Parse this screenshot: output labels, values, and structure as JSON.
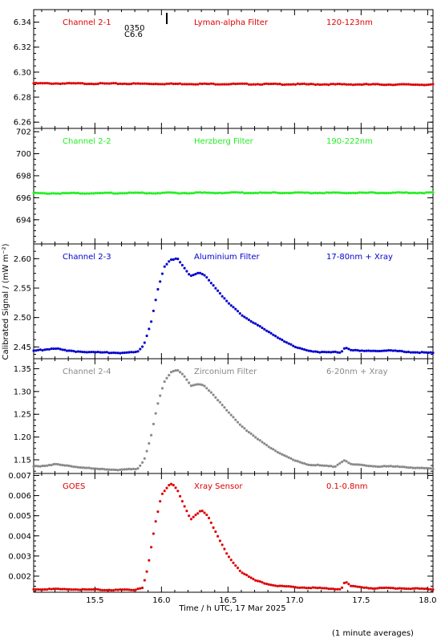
{
  "colors": {
    "red": "#dd0000",
    "green": "#22ee22",
    "blue": "#0000cc",
    "gray": "#888888",
    "axis": "#000000"
  },
  "xlabel": "Time / h UTC, 17 Mar 2025",
  "ylabel": "Calibrated Signal / (mW m⁻²)",
  "footnote": "(1 minute averages)",
  "flare_marker": {
    "time_label": "0350",
    "class_label": "C6.6",
    "x": 16.04
  },
  "x_axis": {
    "xlim": [
      15.04,
      18.04
    ],
    "ticks": [
      15.5,
      16.0,
      16.5,
      17.0,
      17.5,
      18.0
    ],
    "tick_labels": [
      "15.5",
      "16.0",
      "16.5",
      "17.0",
      "17.5",
      "18.0"
    ]
  },
  "chart_data": [
    {
      "type": "scatter",
      "channel": "Channel 2-1",
      "filter": "Lyman-alpha Filter",
      "band": "120-123nm",
      "color": "red",
      "ylim": [
        6.255,
        6.35
      ],
      "yticks": [
        6.26,
        6.28,
        6.3,
        6.32,
        6.34
      ],
      "ytick_labels": [
        "6.26",
        "6.28",
        "6.30",
        "6.32",
        "6.34"
      ],
      "keypoints": [
        [
          15.04,
          6.291
        ],
        [
          16.5,
          6.2905
        ],
        [
          18.04,
          6.29
        ]
      ]
    },
    {
      "type": "scatter",
      "channel": "Channel 2-2",
      "filter": "Herzberg Filter",
      "band": "190-222nm",
      "color": "green",
      "ylim": [
        691.8,
        702.3
      ],
      "yticks": [
        694,
        696,
        698,
        700,
        702
      ],
      "ytick_labels": [
        "694",
        "696",
        "698",
        "700",
        "702"
      ],
      "keypoints": [
        [
          15.04,
          696.4
        ],
        [
          16.5,
          696.45
        ],
        [
          18.04,
          696.45
        ]
      ]
    },
    {
      "type": "scatter",
      "channel": "Channel 2-3",
      "filter": "Aluminium Filter",
      "band": "17-80nm + Xray",
      "color": "blue",
      "ylim": [
        2.43,
        2.625
      ],
      "yticks": [
        2.45,
        2.5,
        2.55,
        2.6
      ],
      "ytick_labels": [
        "2.45",
        "2.50",
        "2.55",
        "2.60"
      ],
      "keypoints": [
        [
          15.04,
          2.443
        ],
        [
          15.2,
          2.448
        ],
        [
          15.3,
          2.443
        ],
        [
          15.5,
          2.441
        ],
        [
          15.7,
          2.44
        ],
        [
          15.82,
          2.441
        ],
        [
          15.87,
          2.455
        ],
        [
          15.92,
          2.49
        ],
        [
          15.97,
          2.545
        ],
        [
          16.02,
          2.585
        ],
        [
          16.07,
          2.598
        ],
        [
          16.12,
          2.601
        ],
        [
          16.17,
          2.585
        ],
        [
          16.22,
          2.57
        ],
        [
          16.28,
          2.576
        ],
        [
          16.33,
          2.571
        ],
        [
          16.4,
          2.552
        ],
        [
          16.5,
          2.525
        ],
        [
          16.6,
          2.505
        ],
        [
          16.7,
          2.49
        ],
        [
          16.8,
          2.476
        ],
        [
          16.9,
          2.463
        ],
        [
          17.0,
          2.45
        ],
        [
          17.1,
          2.444
        ],
        [
          17.2,
          2.441
        ],
        [
          17.35,
          2.441
        ],
        [
          17.38,
          2.45
        ],
        [
          17.42,
          2.445
        ],
        [
          17.5,
          2.443
        ],
        [
          17.7,
          2.444
        ],
        [
          17.9,
          2.441
        ],
        [
          18.04,
          2.44
        ]
      ]
    },
    {
      "type": "scatter",
      "channel": "Channel 2-4",
      "filter": "Zirconium Filter",
      "band": "6-20nm + Xray",
      "color": "gray",
      "ylim": [
        1.12,
        1.372
      ],
      "yticks": [
        1.15,
        1.2,
        1.25,
        1.3,
        1.35
      ],
      "ytick_labels": [
        "1.15",
        "1.20",
        "1.25",
        "1.30",
        "1.35"
      ],
      "keypoints": [
        [
          15.04,
          1.135
        ],
        [
          15.2,
          1.14
        ],
        [
          15.35,
          1.135
        ],
        [
          15.5,
          1.13
        ],
        [
          15.7,
          1.128
        ],
        [
          15.82,
          1.13
        ],
        [
          15.87,
          1.15
        ],
        [
          15.92,
          1.2
        ],
        [
          15.97,
          1.27
        ],
        [
          16.02,
          1.32
        ],
        [
          16.07,
          1.343
        ],
        [
          16.12,
          1.348
        ],
        [
          16.17,
          1.335
        ],
        [
          16.22,
          1.312
        ],
        [
          16.28,
          1.316
        ],
        [
          16.32,
          1.314
        ],
        [
          16.4,
          1.29
        ],
        [
          16.5,
          1.255
        ],
        [
          16.6,
          1.225
        ],
        [
          16.7,
          1.2
        ],
        [
          16.8,
          1.18
        ],
        [
          16.9,
          1.163
        ],
        [
          17.0,
          1.148
        ],
        [
          17.1,
          1.14
        ],
        [
          17.3,
          1.135
        ],
        [
          17.38,
          1.15
        ],
        [
          17.42,
          1.14
        ],
        [
          17.6,
          1.136
        ],
        [
          17.8,
          1.135
        ],
        [
          18.04,
          1.13
        ]
      ]
    },
    {
      "type": "scatter",
      "channel": "GOES",
      "filter": "Xray Sensor",
      "band": "0.1-0.8nm",
      "color": "red",
      "ylim": [
        0.0012,
        0.0071
      ],
      "yticks": [
        0.002,
        0.003,
        0.004,
        0.005,
        0.006,
        0.007
      ],
      "ytick_labels": [
        "0.002",
        "0.003",
        "0.004",
        "0.005",
        "0.006",
        "0.007"
      ],
      "keypoints": [
        [
          15.04,
          0.00135
        ],
        [
          15.3,
          0.00135
        ],
        [
          15.6,
          0.00132
        ],
        [
          15.8,
          0.00132
        ],
        [
          15.86,
          0.00145
        ],
        [
          15.9,
          0.0025
        ],
        [
          15.95,
          0.0045
        ],
        [
          16.0,
          0.006
        ],
        [
          16.05,
          0.0065
        ],
        [
          16.08,
          0.0066
        ],
        [
          16.12,
          0.0063
        ],
        [
          16.17,
          0.0055
        ],
        [
          16.22,
          0.0048
        ],
        [
          16.27,
          0.0051
        ],
        [
          16.3,
          0.0053
        ],
        [
          16.35,
          0.005
        ],
        [
          16.42,
          0.004
        ],
        [
          16.5,
          0.003
        ],
        [
          16.6,
          0.0022
        ],
        [
          16.7,
          0.0018
        ],
        [
          16.8,
          0.0016
        ],
        [
          16.9,
          0.0015
        ],
        [
          17.0,
          0.00145
        ],
        [
          17.2,
          0.0014
        ],
        [
          17.35,
          0.00135
        ],
        [
          17.38,
          0.00175
        ],
        [
          17.42,
          0.0015
        ],
        [
          17.6,
          0.0014
        ],
        [
          17.8,
          0.0014
        ],
        [
          18.04,
          0.00135
        ]
      ]
    }
  ]
}
